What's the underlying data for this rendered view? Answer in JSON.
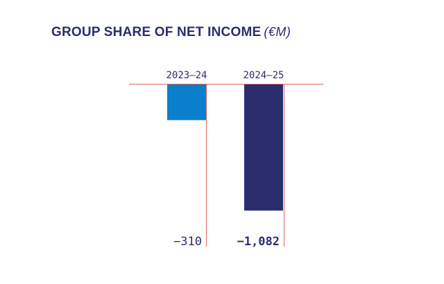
{
  "header": {
    "title": "GROUP SHARE OF NET INCOME",
    "unit": "(€M)"
  },
  "colors": {
    "title": "#2b2d6e",
    "axis": "#e0635e",
    "bar_2023_24": "#0a7fcc",
    "bar_2024_25": "#2b2d6e"
  },
  "chart_data": {
    "type": "bar",
    "title": "GROUP SHARE OF NET INCOME",
    "unit": "€M",
    "categories": [
      "2023–24",
      "2024–25"
    ],
    "values": [
      -310,
      -1082
    ],
    "value_labels": [
      "−310",
      "−1,082"
    ],
    "bold_category": "2024–25",
    "xlabel": "",
    "ylabel": "",
    "ylim": [
      -1082,
      0
    ],
    "grid": false,
    "legend": "none"
  }
}
